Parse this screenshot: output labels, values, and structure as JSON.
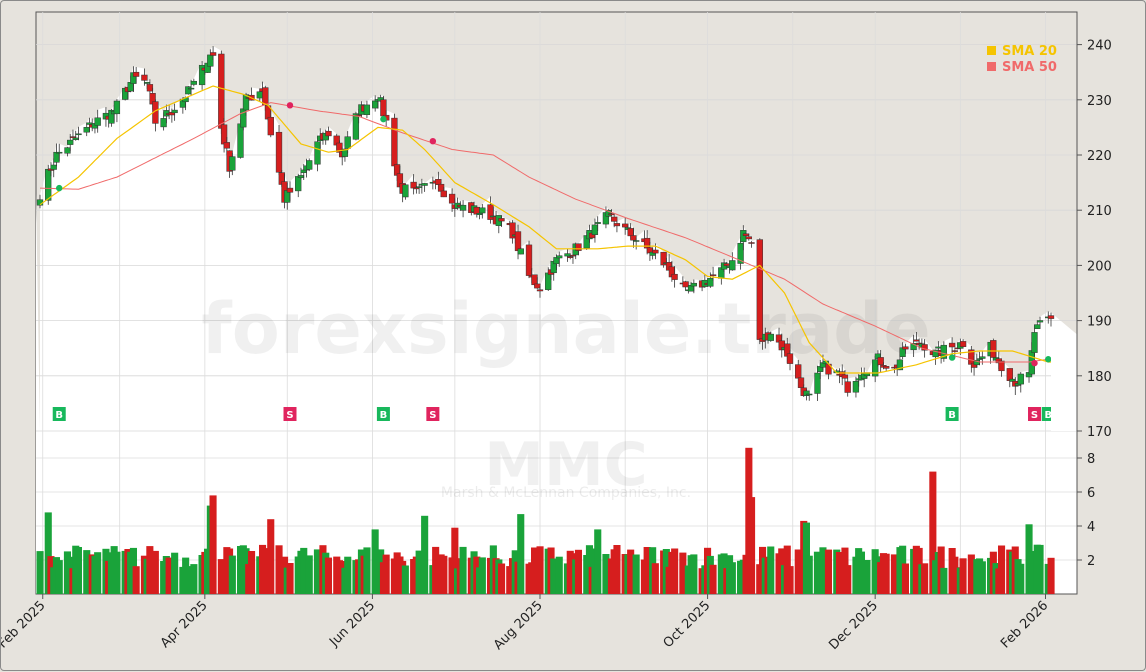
{
  "watermark": {
    "site": "forexsignale.trade",
    "symbol": "MMC",
    "company": "Marsh & McLennan Companies, Inc."
  },
  "legend": [
    {
      "name": "SMA 20",
      "color": "#f5c400"
    },
    {
      "name": "SMA 50",
      "color": "#f06a6a"
    }
  ],
  "colors": {
    "up": "#1aa33a",
    "down": "#d61e1e",
    "sma20": "#f5c400",
    "sma50": "#f06a6a",
    "buy": "#18b85c",
    "sell": "#e0245e"
  },
  "chart_data": {
    "type": "candlestick",
    "x_axis": {
      "start": "2025-01-31",
      "end": "2026-02-03",
      "ticks": [
        "Feb 2025",
        "Apr 2025",
        "Jun 2025",
        "Aug 2025",
        "Oct 2025",
        "Dec 2025",
        "Feb 2026"
      ]
    },
    "price_axis": {
      "range": [
        170,
        245
      ],
      "ticks": [
        170,
        180,
        190,
        200,
        210,
        220,
        230,
        240
      ]
    },
    "volume_axis": {
      "range": [
        0,
        9
      ],
      "ticks": [
        2,
        4,
        6,
        8
      ]
    },
    "close_anchors": [
      [
        "2025-01-31",
        213
      ],
      [
        "2025-02-06",
        220
      ],
      [
        "2025-02-13",
        223
      ],
      [
        "2025-02-20",
        226
      ],
      [
        "2025-02-27",
        228
      ],
      [
        "2025-03-06",
        234
      ],
      [
        "2025-03-11",
        233
      ],
      [
        "2025-03-14",
        226
      ],
      [
        "2025-03-20",
        228
      ],
      [
        "2025-03-27",
        232
      ],
      [
        "2025-04-03",
        238
      ],
      [
        "2025-04-04",
        238
      ],
      [
        "2025-04-07",
        225
      ],
      [
        "2025-04-10",
        218
      ],
      [
        "2025-04-16",
        230
      ],
      [
        "2025-04-22",
        232
      ],
      [
        "2025-04-25",
        224
      ],
      [
        "2025-04-30",
        212
      ],
      [
        "2025-05-06",
        216
      ],
      [
        "2025-05-12",
        222
      ],
      [
        "2025-05-16",
        224
      ],
      [
        "2025-05-21",
        220
      ],
      [
        "2025-05-27",
        228
      ],
      [
        "2025-06-03",
        231
      ],
      [
        "2025-06-06",
        226
      ],
      [
        "2025-06-11",
        214
      ],
      [
        "2025-06-17",
        213
      ],
      [
        "2025-06-24",
        216
      ],
      [
        "2025-06-30",
        211
      ],
      [
        "2025-07-08",
        210
      ],
      [
        "2025-07-15",
        209
      ],
      [
        "2025-07-22",
        206
      ],
      [
        "2025-07-28",
        198
      ],
      [
        "2025-08-01",
        196
      ],
      [
        "2025-08-07",
        201
      ],
      [
        "2025-08-14",
        203
      ],
      [
        "2025-08-20",
        206
      ],
      [
        "2025-08-26",
        209
      ],
      [
        "2025-09-02",
        206
      ],
      [
        "2025-09-09",
        203
      ],
      [
        "2025-09-16",
        200
      ],
      [
        "2025-09-23",
        195
      ],
      [
        "2025-09-30",
        197
      ],
      [
        "2025-10-06",
        199
      ],
      [
        "2025-10-10",
        201
      ],
      [
        "2025-10-14",
        206
      ],
      [
        "2025-10-17",
        204
      ],
      [
        "2025-10-20",
        186
      ],
      [
        "2025-10-24",
        188
      ],
      [
        "2025-10-30",
        184
      ],
      [
        "2025-11-04",
        178
      ],
      [
        "2025-11-07",
        176
      ],
      [
        "2025-11-12",
        182
      ],
      [
        "2025-11-18",
        180
      ],
      [
        "2025-11-21",
        178
      ],
      [
        "2025-11-26",
        181
      ],
      [
        "2025-12-02",
        183
      ],
      [
        "2025-12-08",
        181
      ],
      [
        "2025-12-12",
        185
      ],
      [
        "2025-12-18",
        186
      ],
      [
        "2025-12-23",
        184
      ],
      [
        "2026-01-02",
        186
      ],
      [
        "2026-01-06",
        182
      ],
      [
        "2026-01-12",
        185
      ],
      [
        "2026-01-16",
        182
      ],
      [
        "2026-01-21",
        179
      ],
      [
        "2026-01-26",
        180
      ],
      [
        "2026-01-28",
        188
      ],
      [
        "2026-01-30",
        189
      ],
      [
        "2026-02-02",
        190
      ]
    ],
    "volume_spikes": [
      [
        "2025-02-03",
        4.8
      ],
      [
        "2025-04-03",
        5.2
      ],
      [
        "2025-04-04",
        5.8
      ],
      [
        "2025-04-25",
        4.4
      ],
      [
        "2025-06-02",
        3.8
      ],
      [
        "2025-06-20",
        4.6
      ],
      [
        "2025-07-01",
        3.9
      ],
      [
        "2025-07-25",
        4.7
      ],
      [
        "2025-08-22",
        3.8
      ],
      [
        "2025-10-16",
        8.6
      ],
      [
        "2025-10-17",
        5.7
      ],
      [
        "2025-11-05",
        4.3
      ],
      [
        "2025-11-06",
        4.2
      ],
      [
        "2025-12-22",
        7.2
      ],
      [
        "2026-01-26",
        4.1
      ]
    ],
    "sma20_anchors": [
      [
        "2025-01-31",
        211
      ],
      [
        "2025-02-14",
        216
      ],
      [
        "2025-02-28",
        223
      ],
      [
        "2025-03-14",
        228
      ],
      [
        "2025-03-28",
        231
      ],
      [
        "2025-04-04",
        232.5
      ],
      [
        "2025-04-15",
        231
      ],
      [
        "2025-04-24",
        229
      ],
      [
        "2025-05-06",
        222
      ],
      [
        "2025-05-16",
        220.5
      ],
      [
        "2025-05-23",
        221
      ],
      [
        "2025-06-03",
        225
      ],
      [
        "2025-06-12",
        224.5
      ],
      [
        "2025-06-20",
        221
      ],
      [
        "2025-07-01",
        215
      ],
      [
        "2025-07-15",
        211
      ],
      [
        "2025-07-28",
        207
      ],
      [
        "2025-08-07",
        203
      ],
      [
        "2025-08-22",
        203
      ],
      [
        "2025-09-02",
        203.5
      ],
      [
        "2025-09-12",
        203.5
      ],
      [
        "2025-09-23",
        201
      ],
      [
        "2025-10-01",
        198
      ],
      [
        "2025-10-10",
        197.5
      ],
      [
        "2025-10-20",
        200
      ],
      [
        "2025-10-29",
        195
      ],
      [
        "2025-11-07",
        186
      ],
      [
        "2025-11-17",
        180.5
      ],
      [
        "2025-12-02",
        180.5
      ],
      [
        "2025-12-16",
        182
      ],
      [
        "2025-12-29",
        184
      ],
      [
        "2026-01-08",
        184.5
      ],
      [
        "2026-01-20",
        184.5
      ],
      [
        "2026-02-02",
        182.5
      ]
    ],
    "sma50_anchors": [
      [
        "2025-01-31",
        214
      ],
      [
        "2025-02-14",
        213.8
      ],
      [
        "2025-02-28",
        216
      ],
      [
        "2025-03-14",
        219.5
      ],
      [
        "2025-03-28",
        223
      ],
      [
        "2025-04-14",
        227.5
      ],
      [
        "2025-04-25",
        229.5
      ],
      [
        "2025-05-12",
        228
      ],
      [
        "2025-05-27",
        227
      ],
      [
        "2025-06-12",
        224
      ],
      [
        "2025-06-30",
        221
      ],
      [
        "2025-07-15",
        220
      ],
      [
        "2025-07-28",
        216
      ],
      [
        "2025-08-14",
        212
      ],
      [
        "2025-09-02",
        208.5
      ],
      [
        "2025-09-23",
        205
      ],
      [
        "2025-10-10",
        201.5
      ],
      [
        "2025-10-29",
        197.5
      ],
      [
        "2025-11-12",
        193
      ],
      [
        "2025-12-01",
        189
      ],
      [
        "2025-12-18",
        185
      ],
      [
        "2026-01-08",
        182.5
      ],
      [
        "2026-01-26",
        182.5
      ],
      [
        "2026-02-02",
        183
      ]
    ],
    "crossovers": [
      {
        "date": "2025-02-07",
        "price": 214,
        "type": "buy"
      },
      {
        "date": "2025-05-02",
        "price": 229,
        "type": "sell"
      },
      {
        "date": "2025-06-05",
        "price": 226.5,
        "type": "buy"
      },
      {
        "date": "2025-06-23",
        "price": 222.5,
        "type": "sell"
      },
      {
        "date": "2025-12-29",
        "price": 183.3,
        "type": "buy"
      },
      {
        "date": "2026-01-28",
        "price": 182.3,
        "type": "sell"
      },
      {
        "date": "2026-02-02",
        "price": 183,
        "type": "buy"
      }
    ],
    "signals": [
      {
        "date": "2025-02-07",
        "label": "B"
      },
      {
        "date": "2025-05-02",
        "label": "S"
      },
      {
        "date": "2025-06-05",
        "label": "B"
      },
      {
        "date": "2025-06-23",
        "label": "S"
      },
      {
        "date": "2025-12-29",
        "label": "B"
      },
      {
        "date": "2026-01-28",
        "label": "S"
      },
      {
        "date": "2026-02-02",
        "label": "B"
      }
    ],
    "last_close_marker": 187.5
  }
}
